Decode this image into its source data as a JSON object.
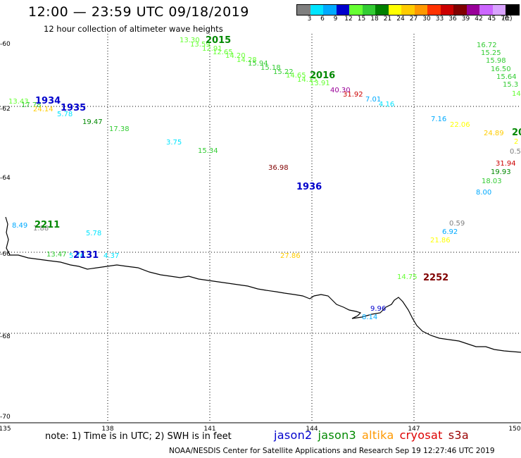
{
  "title": "12:00 — 23:59 UTC 09/18/2019",
  "subtitle": "12 hour collection of altimeter wave heights",
  "color_scale": {
    "labels": [
      "3",
      "6",
      "9",
      "12",
      "15",
      "18",
      "21",
      "24",
      "27",
      "30",
      "33",
      "36",
      "39",
      "42",
      "45",
      "70",
      "(ft)"
    ],
    "colors": [
      "#7f7f7f",
      "#00e5ff",
      "#00aaff",
      "#0000cd",
      "#66ff33",
      "#33cc33",
      "#008000",
      "#ffff00",
      "#ffcc00",
      "#ff9900",
      "#ff3300",
      "#cc0000",
      "#800000",
      "#990099",
      "#cc66ff",
      "#d9a3ff",
      "#000000"
    ]
  },
  "axes": {
    "lat_labels": [
      "-60",
      "-62",
      "-64",
      "-66",
      "-68",
      "-70"
    ],
    "lon_labels": [
      "135",
      "138",
      "141",
      "144",
      "147",
      "150"
    ]
  },
  "note": "note:  1) Time is in UTC;  2) SWH is in feet",
  "satellites": [
    {
      "name": "jason2",
      "color": "#0000cc"
    },
    {
      "name": "jason3",
      "color": "#008800"
    },
    {
      "name": "altika",
      "color": "#ff9900"
    },
    {
      "name": "cryosat",
      "color": "#dd0000"
    },
    {
      "name": "s3a",
      "color": "#990000"
    }
  ],
  "credit": "NOAA/NESDIS Center for Satellite Applications and Research    Sep 19 12:27:46 UTC 2019",
  "pass_times": [
    {
      "text": "2015",
      "color": "#008800"
    },
    {
      "text": "2016",
      "color": "#008800"
    },
    {
      "text": "1934",
      "color": "#0000cc"
    },
    {
      "text": "1935",
      "color": "#0000cc"
    },
    {
      "text": "1936",
      "color": "#0000cc"
    },
    {
      "text": "2211",
      "color": "#008800"
    },
    {
      "text": "2131",
      "color": "#0000cc"
    },
    {
      "text": "2252",
      "color": "#800000"
    },
    {
      "text": "20",
      "color": "#008800"
    }
  ],
  "wave_heights": [
    {
      "text": "13.30",
      "color": "#66ff33"
    },
    {
      "text": "13.59",
      "color": "#66ff33"
    },
    {
      "text": "12.91",
      "color": "#66ff33"
    },
    {
      "text": "12.65",
      "color": "#66ff33"
    },
    {
      "text": "14.20",
      "color": "#66ff33"
    },
    {
      "text": "14.28",
      "color": "#66ff33"
    },
    {
      "text": "15.94",
      "color": "#33cc33"
    },
    {
      "text": "15.18",
      "color": "#33cc33"
    },
    {
      "text": "15.22",
      "color": "#33cc33"
    },
    {
      "text": "14.65",
      "color": "#66ff33"
    },
    {
      "text": "14.15",
      "color": "#66ff33"
    },
    {
      "text": "13.91",
      "color": "#66ff33"
    },
    {
      "text": "40.30",
      "color": "#990099"
    },
    {
      "text": "31.92",
      "color": "#cc0000"
    },
    {
      "text": "7.01",
      "color": "#00aaff"
    },
    {
      "text": "4.16",
      "color": "#00e5ff"
    },
    {
      "text": "16.72",
      "color": "#33cc33"
    },
    {
      "text": "15.25",
      "color": "#33cc33"
    },
    {
      "text": "15.98",
      "color": "#33cc33"
    },
    {
      "text": "16.50",
      "color": "#33cc33"
    },
    {
      "text": "15.64",
      "color": "#33cc33"
    },
    {
      "text": "15.3",
      "color": "#33cc33"
    },
    {
      "text": "14",
      "color": "#66ff33"
    },
    {
      "text": "13.43",
      "color": "#66ff33"
    },
    {
      "text": "17.78",
      "color": "#33cc33"
    },
    {
      "text": "24.14",
      "color": "#ffcc00"
    },
    {
      "text": "5.78",
      "color": "#00e5ff"
    },
    {
      "text": "19.47",
      "color": "#008800"
    },
    {
      "text": "17.38",
      "color": "#33cc33"
    },
    {
      "text": "3.75",
      "color": "#00e5ff"
    },
    {
      "text": "15.34",
      "color": "#33cc33"
    },
    {
      "text": "36.98",
      "color": "#800000"
    },
    {
      "text": "7.16",
      "color": "#00aaff"
    },
    {
      "text": "22.06",
      "color": "#ffff00"
    },
    {
      "text": "24.89",
      "color": "#ffcc00"
    },
    {
      "text": "2",
      "color": "#ffff00"
    },
    {
      "text": "0.5",
      "color": "#7f7f7f"
    },
    {
      "text": "31.94",
      "color": "#cc0000"
    },
    {
      "text": "19.93",
      "color": "#008800"
    },
    {
      "text": "18.03",
      "color": "#33cc33"
    },
    {
      "text": "8.00",
      "color": "#00aaff"
    },
    {
      "text": "8.49",
      "color": "#00aaff"
    },
    {
      "text": "1.88",
      "color": "#7f7f7f"
    },
    {
      "text": "5.78",
      "color": "#00e5ff"
    },
    {
      "text": "13.47",
      "color": "#33cc33"
    },
    {
      "text": "5.76",
      "color": "#00e5ff"
    },
    {
      "text": "4.37",
      "color": "#00e5ff"
    },
    {
      "text": "27.86",
      "color": "#ffcc00"
    },
    {
      "text": "0.59",
      "color": "#7f7f7f"
    },
    {
      "text": "6.92",
      "color": "#00aaff"
    },
    {
      "text": "21.86",
      "color": "#ffff00"
    },
    {
      "text": "14.75",
      "color": "#66ff33"
    },
    {
      "text": "9.96",
      "color": "#0000cd"
    },
    {
      "text": "8.14",
      "color": "#00aaff"
    }
  ]
}
